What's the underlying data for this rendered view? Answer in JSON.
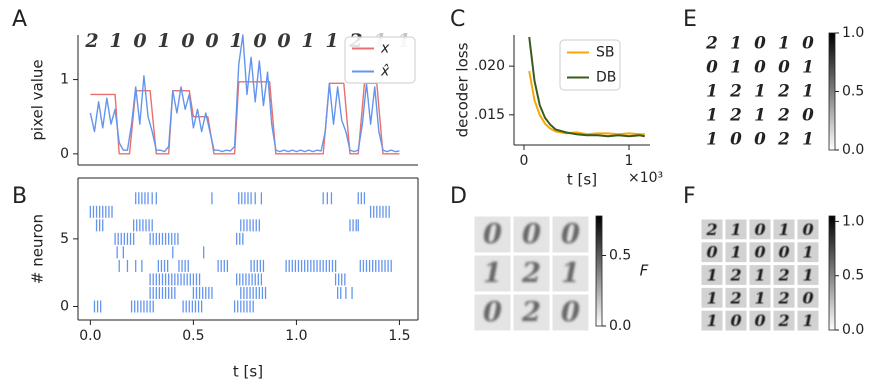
{
  "chart_data": [
    {
      "panel": "A",
      "type": "line",
      "ylabel": "pixel value",
      "xlim": [
        -0.06,
        1.59
      ],
      "ylim": [
        -0.15,
        1.6
      ],
      "yticks": [
        0,
        1
      ],
      "digits": [
        "2",
        "1",
        "0",
        "1",
        "0",
        "0",
        "1",
        "0",
        "0",
        "1",
        "1",
        "2",
        "1",
        "1"
      ],
      "legend": "upper right",
      "series": [
        {
          "name": "x",
          "color": "#e8706e",
          "x": [
            0,
            0.12,
            0.14,
            0.19,
            0.22,
            0.29,
            0.32,
            0.38,
            0.4,
            0.48,
            0.5,
            0.57,
            0.6,
            0.7,
            0.72,
            0.87,
            0.9,
            1.13,
            1.16,
            1.23,
            1.26,
            1.3,
            1.33,
            1.39,
            1.42,
            1.5
          ],
          "values": [
            0.8,
            0.8,
            0,
            0,
            0.85,
            0.85,
            0,
            0,
            0.85,
            0.85,
            0.5,
            0.5,
            0,
            0,
            0.97,
            0.97,
            0,
            0,
            0.95,
            0.95,
            0,
            0,
            0.95,
            0.95,
            0,
            0
          ]
        },
        {
          "name": "x̂",
          "color": "#6495ed",
          "x": [
            0,
            0.02,
            0.04,
            0.06,
            0.08,
            0.1,
            0.12,
            0.14,
            0.16,
            0.18,
            0.2,
            0.22,
            0.24,
            0.26,
            0.28,
            0.3,
            0.32,
            0.34,
            0.36,
            0.38,
            0.4,
            0.42,
            0.44,
            0.46,
            0.48,
            0.5,
            0.52,
            0.54,
            0.56,
            0.58,
            0.6,
            0.62,
            0.64,
            0.66,
            0.68,
            0.7,
            0.72,
            0.74,
            0.76,
            0.78,
            0.8,
            0.82,
            0.84,
            0.86,
            0.88,
            0.9,
            0.92,
            0.94,
            0.96,
            0.98,
            1.0,
            1.02,
            1.04,
            1.06,
            1.08,
            1.1,
            1.12,
            1.14,
            1.16,
            1.18,
            1.2,
            1.22,
            1.24,
            1.26,
            1.28,
            1.3,
            1.32,
            1.34,
            1.36,
            1.38,
            1.4,
            1.42,
            1.44,
            1.46,
            1.48,
            1.5
          ],
          "values": [
            0.55,
            0.3,
            0.7,
            0.35,
            0.75,
            0.4,
            0.6,
            0.15,
            0.05,
            0.05,
            0.4,
            0.9,
            0.4,
            1.05,
            0.5,
            0.3,
            0.05,
            0.05,
            0.03,
            0.1,
            0.85,
            0.55,
            0.9,
            0.6,
            0.8,
            0.35,
            0.6,
            0.3,
            0.55,
            0.3,
            0.05,
            0.05,
            0.03,
            0.05,
            0.04,
            0.1,
            1.2,
            1.6,
            0.8,
            1.3,
            0.7,
            1.25,
            0.65,
            1.1,
            0.4,
            0.05,
            0.03,
            0.05,
            0.03,
            0.05,
            0.03,
            0.05,
            0.03,
            0.05,
            0.03,
            0.05,
            0.04,
            0.3,
            0.95,
            0.4,
            0.9,
            0.45,
            0.3,
            0.05,
            0.03,
            0.05,
            0.4,
            0.95,
            0.4,
            0.9,
            0.3,
            0.05,
            0.03,
            0.05,
            0.03,
            0.04
          ]
        }
      ]
    },
    {
      "panel": "B",
      "type": "raster",
      "ylabel": "# neuron",
      "xlabel": "t [s]",
      "color": "#6495ed",
      "xlim": [
        -0.06,
        1.59
      ],
      "ylim": [
        -1,
        9.5
      ],
      "yticks": [
        0,
        5
      ],
      "xticks": [
        {
          "value": 0,
          "label": "0.0"
        },
        0.5,
        {
          "value": 1,
          "label": "1.0"
        },
        1.5
      ],
      "neurons": [
        {
          "neuron": 0,
          "spikes": [
            0.02,
            0.035,
            0.05,
            0.2,
            0.215,
            0.23,
            0.245,
            0.26,
            0.275,
            0.29,
            0.305,
            0.45,
            0.465,
            0.48,
            0.495,
            0.51,
            0.525,
            0.54,
            0.7,
            0.715,
            0.73,
            0.745,
            0.76,
            0.775,
            0.79
          ]
        },
        {
          "neuron": 1,
          "spikes": [
            0.29,
            0.305,
            0.32,
            0.335,
            0.35,
            0.365,
            0.38,
            0.395,
            0.41,
            0.5,
            0.515,
            0.53,
            0.545,
            0.56,
            0.575,
            0.59,
            0.73,
            0.745,
            0.76,
            0.775,
            0.79,
            0.805,
            0.82,
            0.835,
            0.85,
            1.2,
            1.215,
            1.24,
            1.27
          ]
        },
        {
          "neuron": 2,
          "spikes": [
            0.29,
            0.305,
            0.32,
            0.335,
            0.35,
            0.365,
            0.38,
            0.395,
            0.41,
            0.425,
            0.44,
            0.455,
            0.47,
            0.485,
            0.5,
            0.515,
            0.53,
            0.71,
            0.725,
            0.74,
            0.755,
            0.77,
            0.785,
            0.8,
            0.815,
            0.83,
            1.19,
            1.205,
            1.22,
            1.235
          ]
        },
        {
          "neuron": 3,
          "spikes": [
            0.14,
            0.18,
            0.22,
            0.25,
            0.33,
            0.345,
            0.36,
            0.375,
            0.43,
            0.445,
            0.46,
            0.475,
            0.62,
            0.635,
            0.65,
            0.665,
            0.78,
            0.795,
            0.81,
            0.825,
            0.84,
            0.95,
            0.965,
            0.98,
            0.995,
            1.01,
            1.025,
            1.04,
            1.055,
            1.07,
            1.085,
            1.1,
            1.115,
            1.13,
            1.145,
            1.16,
            1.175,
            1.19,
            1.31,
            1.325,
            1.34,
            1.355,
            1.37,
            1.385,
            1.4,
            1.415,
            1.43,
            1.445,
            1.46
          ]
        },
        {
          "neuron": 4,
          "spikes": [
            0.13,
            0.16,
            0.4,
            0.55
          ]
        },
        {
          "neuron": 5,
          "spikes": [
            0.12,
            0.135,
            0.15,
            0.165,
            0.18,
            0.195,
            0.21,
            0.29,
            0.305,
            0.32,
            0.335,
            0.35,
            0.365,
            0.38,
            0.395,
            0.41,
            0.425,
            0.71,
            0.725,
            0.74
          ]
        },
        {
          "neuron": 6,
          "spikes": [
            0.03,
            0.045,
            0.06,
            0.21,
            0.225,
            0.24,
            0.255,
            0.27,
            0.285,
            0.3,
            0.73,
            0.745,
            0.76,
            0.775,
            0.79,
            0.805,
            0.82,
            1.26,
            1.275,
            1.29,
            1.3
          ]
        },
        {
          "neuron": 7,
          "spikes": [
            0.0,
            0.015,
            0.03,
            0.045,
            0.06,
            0.075,
            0.09,
            0.105,
            1.36,
            1.375,
            1.39,
            1.405,
            1.42,
            1.435,
            1.45
          ]
        },
        {
          "neuron": 8,
          "spikes": [
            0.22,
            0.235,
            0.25,
            0.265,
            0.28,
            0.3,
            0.32,
            0.59,
            0.72,
            0.735,
            0.75,
            0.765,
            0.78,
            0.8,
            0.83,
            1.13,
            1.15,
            1.17,
            1.3,
            1.315,
            1.33
          ]
        }
      ]
    },
    {
      "panel": "C",
      "type": "line",
      "ylabel": "decoder loss",
      "xlabel": "t [s]",
      "x_offset_label": "×10³",
      "xlim": [
        -0.095,
        1.2
      ],
      "ylim": [
        0.0119,
        0.0232
      ],
      "xticks": [
        0,
        1
      ],
      "yticks": [
        {
          "value": 0.015,
          "label": ".015"
        },
        {
          "value": 0.02,
          "label": ".020"
        }
      ],
      "legend": "upper right",
      "series": [
        {
          "name": "SB",
          "color": "#f5a800",
          "x": [
            0.05,
            0.1,
            0.15,
            0.2,
            0.25,
            0.3,
            0.4,
            0.5,
            0.6,
            0.7,
            0.8,
            0.9,
            1.0,
            1.1,
            1.15
          ],
          "values": [
            0.0195,
            0.0165,
            0.015,
            0.0141,
            0.0136,
            0.0133,
            0.0131,
            0.0132,
            0.013,
            0.0131,
            0.0131,
            0.013,
            0.0131,
            0.013,
            0.013
          ]
        },
        {
          "name": "DB",
          "color": "#3b5b1c",
          "x": [
            0.05,
            0.1,
            0.15,
            0.2,
            0.25,
            0.3,
            0.4,
            0.5,
            0.6,
            0.7,
            0.8,
            0.9,
            1.0,
            1.1,
            1.15
          ],
          "values": [
            0.023,
            0.0185,
            0.016,
            0.0147,
            0.014,
            0.0135,
            0.0132,
            0.013,
            0.0129,
            0.0129,
            0.0128,
            0.0129,
            0.0128,
            0.0129,
            0.0128
          ]
        }
      ]
    },
    {
      "panel": "D",
      "type": "image_grid",
      "cbar_label": "F",
      "clim": [
        0,
        0.78
      ],
      "cticks": [
        {
          "value": 0,
          "label": "0.0"
        },
        0.5
      ],
      "rows": [
        [
          "0",
          "0",
          "0"
        ],
        [
          "1",
          "2",
          "1"
        ],
        [
          "0",
          "2",
          "0"
        ]
      ]
    },
    {
      "panel": "E",
      "type": "image_grid",
      "clim": [
        0,
        1
      ],
      "cticks": [
        {
          "value": 0,
          "label": "0.0"
        },
        0.5,
        {
          "value": 1,
          "label": "1.0"
        }
      ],
      "rows": [
        [
          "2",
          "1",
          "0",
          "1",
          "0"
        ],
        [
          "0",
          "1",
          "0",
          "0",
          "1"
        ],
        [
          "1",
          "2",
          "1",
          "2",
          "1"
        ],
        [
          "1",
          "2",
          "1",
          "2",
          "0"
        ],
        [
          "1",
          "0",
          "0",
          "2",
          "1"
        ]
      ]
    },
    {
      "panel": "F",
      "type": "image_grid",
      "clim": [
        0,
        1.05
      ],
      "cticks": [
        {
          "value": 0,
          "label": "0.0"
        },
        0.5,
        {
          "value": 1,
          "label": "1.0"
        }
      ],
      "rows": [
        [
          "2",
          "1",
          "0",
          "1",
          "0"
        ],
        [
          "0",
          "1",
          "0",
          "0",
          "1"
        ],
        [
          "1",
          "2",
          "1",
          "2",
          "1"
        ],
        [
          "1",
          "2",
          "1",
          "2",
          "0"
        ],
        [
          "1",
          "0",
          "0",
          "2",
          "1"
        ]
      ]
    }
  ]
}
